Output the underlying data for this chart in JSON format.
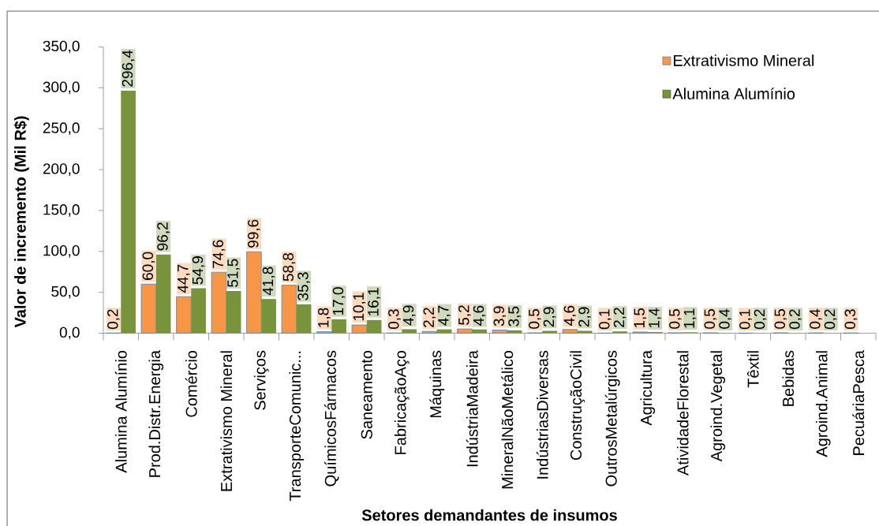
{
  "chart_data": {
    "type": "bar",
    "xlabel": "Setores demandantes de insumos",
    "ylabel": "Valor de incremento (Mil R$)",
    "categories": [
      "Alumina Alumínio",
      "Prod.Distr.Energia",
      "Comércio",
      "Extrativismo Mineral",
      "Serviços",
      "TransporteComunic...",
      "QuímicosFármacos",
      "Saneamento",
      "FabricaçãoAço",
      "Máquinas",
      "IndústriaMadeira",
      "MineralNãoMetálico",
      "IndústriasDiversas",
      "ConstruçãoCivil",
      "OutrosMetalúrgicos",
      "Agricultura",
      "AtividadeFlorestal",
      "Agroind.Vegetal",
      "Têxtil",
      "Bebidas",
      "Agroind.Animal",
      "PecuáriaPesca"
    ],
    "series": [
      {
        "name": "Extrativismo Mineral",
        "color": "#f79646",
        "values": [
          0.2,
          60.0,
          44.7,
          74.6,
          99.6,
          58.8,
          1.8,
          10.1,
          0.3,
          2.2,
          5.2,
          3.9,
          0.5,
          4.6,
          0.1,
          1.5,
          0.5,
          0.5,
          0.1,
          0.5,
          0.4,
          0.3
        ],
        "value_labels": [
          "0,2",
          "60,0",
          "44,7",
          "74,6",
          "99,6",
          "58,8",
          "1,8",
          "10,1",
          "0,3",
          "2,2",
          "5,2",
          "3,9",
          "0,5",
          "4,6",
          "0,1",
          "1,5",
          "0,5",
          "0,5",
          "0,1",
          "0,5",
          "0,4",
          "0,3"
        ]
      },
      {
        "name": "Alumina Alumínio",
        "color": "#77933c",
        "values": [
          296.4,
          96.2,
          54.9,
          51.5,
          41.8,
          35.3,
          17.0,
          16.1,
          4.9,
          4.7,
          4.6,
          3.5,
          2.9,
          2.9,
          2.2,
          1.4,
          1.1,
          0.4,
          0.2,
          0.2,
          0.2,
          null
        ],
        "value_labels": [
          "296,4",
          "96,2",
          "54,9",
          "51,5",
          "41,8",
          "35,3",
          "17,0",
          "16,1",
          "4,9",
          "4,7",
          "4,6",
          "3,5",
          "2,9",
          "2,9",
          "2,2",
          "1,4",
          "1,1",
          "0,4",
          "0,2",
          "0,2",
          "0,2",
          null
        ]
      }
    ],
    "ylim": [
      0,
      350
    ],
    "yticks": [
      {
        "value": 0,
        "label": "0,0"
      },
      {
        "value": 50,
        "label": "50,0"
      },
      {
        "value": 100,
        "label": "100,0"
      },
      {
        "value": 150,
        "label": "150,0"
      },
      {
        "value": 200,
        "label": "200,0"
      },
      {
        "value": 250,
        "label": "250,0"
      },
      {
        "value": 300,
        "label": "300,0"
      },
      {
        "value": 350,
        "label": "350,0"
      }
    ],
    "legend": "top right"
  }
}
